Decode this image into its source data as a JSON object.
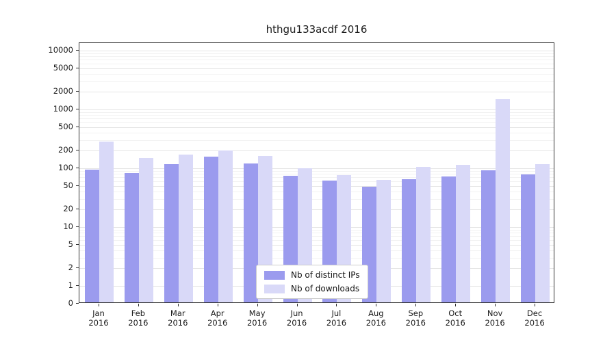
{
  "chart_data": {
    "type": "bar",
    "title": "hthgu133acdf 2016",
    "categories": [
      "Jan",
      "Feb",
      "Mar",
      "Apr",
      "May",
      "Jun",
      "Jul",
      "Aug",
      "Sep",
      "Oct",
      "Nov",
      "Dec"
    ],
    "year": "2016",
    "series": [
      {
        "name": "Nb of distinct IPs",
        "color": "#9b9bee",
        "values": [
          90,
          78,
          110,
          150,
          113,
          70,
          58,
          46,
          62,
          68,
          88,
          74
        ]
      },
      {
        "name": "Nb of downloads",
        "color": "#d9d9f8",
        "values": [
          270,
          140,
          160,
          190,
          155,
          95,
          72,
          60,
          100,
          107,
          1400,
          112
        ]
      }
    ],
    "yscale": "symlog",
    "ylim": [
      0,
      10000
    ],
    "yticks": [
      0,
      1,
      2,
      5,
      10,
      20,
      50,
      100,
      200,
      500,
      1000,
      2000,
      5000,
      10000
    ],
    "grid": "horizontal",
    "legend_position": "lower center"
  }
}
